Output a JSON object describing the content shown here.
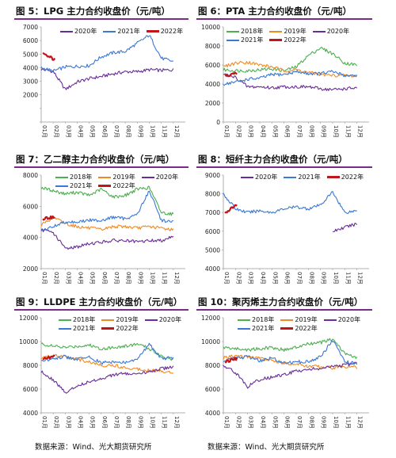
{
  "source_left": "数据来源：Wind、光大期货研究所",
  "source_right": "数据来源：Wind、光大期货研究所",
  "colors": {
    "2018": "#4caf50",
    "2019": "#f08a24",
    "2020": "#6a2c9a",
    "2021": "#3a78d4",
    "2022": "#c0161b",
    "rule": "#7a2b8a"
  },
  "months": [
    "01月",
    "02月",
    "03月",
    "04月",
    "05月",
    "06月",
    "07月",
    "08月",
    "09月",
    "10月",
    "11月",
    "12月"
  ],
  "chart_data": [
    {
      "type": "line",
      "title": "图 5：LPG 主力合约收盘价（元/吨）",
      "ylim": [
        0,
        7000
      ],
      "yticks": [
        0,
        1000,
        2000,
        3000,
        4000,
        5000,
        6000,
        7000
      ],
      "yticklabels": [
        "",
        "",
        "2000",
        "3000",
        "4000",
        "5000",
        "6000",
        "7000"
      ],
      "series": [
        {
          "name": "2020年",
          "values": [
            3880,
            3730,
            2400,
            2950,
            3200,
            3350,
            3550,
            3700,
            3700,
            3850,
            3800,
            3850
          ]
        },
        {
          "name": "2021年",
          "values": [
            4000,
            3750,
            4050,
            4100,
            4150,
            4800,
            5100,
            5200,
            5800,
            6400,
            4700,
            4450
          ]
        },
        {
          "name": "2022年",
          "values": [
            5000,
            4600
          ]
        }
      ]
    },
    {
      "type": "line",
      "title": "图 6：PTA 主力合约收盘价（元/吨）",
      "ylim": [
        0,
        10000
      ],
      "yticks": [
        0,
        2000,
        4000,
        6000,
        8000,
        10000
      ],
      "yticklabels": [
        "0",
        "2000",
        "4000",
        "6000",
        "8000",
        "10000"
      ],
      "series": [
        {
          "name": "2018年",
          "values": [
            5500,
            5400,
            5400,
            5500,
            5600,
            5400,
            5800,
            7000,
            7800,
            7200,
            6200,
            6000
          ]
        },
        {
          "name": "2019年",
          "values": [
            5800,
            6200,
            6300,
            6000,
            5800,
            5400,
            5500,
            5200,
            5000,
            4900,
            4900,
            4800
          ]
        },
        {
          "name": "2020年",
          "values": [
            5000,
            4700,
            3700,
            3700,
            3600,
            3700,
            3700,
            3700,
            3500,
            3400,
            3500,
            3600
          ]
        },
        {
          "name": "2021年",
          "values": [
            4000,
            4200,
            4500,
            4600,
            5000,
            5000,
            5300,
            5100,
            5100,
            5300,
            4900,
            4900
          ]
        },
        {
          "name": "2022年",
          "values": [
            4800,
            5100
          ]
        }
      ]
    },
    {
      "type": "line",
      "title": "图 7：乙二醇主力合约收盘价（元/吨）",
      "ylim": [
        2000,
        8000
      ],
      "yticks": [
        2000,
        4000,
        6000,
        8000
      ],
      "yticklabels": [
        "2000",
        "4000",
        "6000",
        "8000"
      ],
      "series": [
        {
          "name": "2018年",
          "values": [
            7200,
            7000,
            6800,
            6900,
            6700,
            7100,
            6600,
            6700,
            7100,
            7200,
            5600,
            5500
          ]
        },
        {
          "name": "2019年",
          "values": [
            4800,
            5300,
            4900,
            4700,
            4600,
            4500,
            4700,
            4700,
            4600,
            4700,
            4600,
            4500
          ]
        },
        {
          "name": "2020年",
          "values": [
            4500,
            4300,
            3300,
            3400,
            3600,
            3700,
            3800,
            3800,
            3700,
            3800,
            3800,
            4100
          ]
        },
        {
          "name": "2021年",
          "values": [
            4400,
            4700,
            5000,
            5000,
            5100,
            5100,
            5300,
            5200,
            5500,
            7000,
            5100,
            5000
          ]
        },
        {
          "name": "2022年",
          "values": [
            5200,
            5300
          ]
        }
      ]
    },
    {
      "type": "line",
      "title": "图 8：短纤主力合约收盘价（元/吨）",
      "ylim": [
        4000,
        9000
      ],
      "yticks": [
        4000,
        5000,
        6000,
        7000,
        8000,
        9000
      ],
      "yticklabels": [
        "4000",
        "5000",
        "6000",
        "7000",
        "8000",
        "9000"
      ],
      "series": [
        {
          "name": "2020年",
          "values": [
            null,
            null,
            null,
            null,
            null,
            null,
            null,
            null,
            null,
            6000,
            6200,
            6400
          ]
        },
        {
          "name": "2021年",
          "values": [
            8000,
            7200,
            7000,
            7100,
            7000,
            7200,
            7300,
            7200,
            7400,
            8100,
            7000,
            7100
          ]
        },
        {
          "name": "2022年",
          "values": [
            7000,
            7400
          ]
        }
      ]
    },
    {
      "type": "line",
      "title": "图 9：LLDPE 主力合约收盘价（元/吨）",
      "ylim": [
        4000,
        12000
      ],
      "yticks": [
        4000,
        6000,
        8000,
        10000,
        12000
      ],
      "yticklabels": [
        "4000",
        "6000",
        "8000",
        "10000",
        "12000"
      ],
      "series": [
        {
          "name": "2018年",
          "values": [
            9800,
            9600,
            9500,
            9600,
            9700,
            9400,
            9500,
            9600,
            9800,
            9400,
            8800,
            8500
          ]
        },
        {
          "name": "2019年",
          "values": [
            8600,
            8800,
            8800,
            8500,
            8300,
            8000,
            8000,
            7800,
            7700,
            7600,
            7500,
            7400
          ]
        },
        {
          "name": "2020年",
          "values": [
            7500,
            6800,
            5700,
            6300,
            6600,
            6900,
            7200,
            7300,
            7200,
            7500,
            7700,
            7900
          ]
        },
        {
          "name": "2021年",
          "values": [
            8300,
            8600,
            8700,
            8500,
            8700,
            8200,
            8300,
            8200,
            8500,
            9800,
            8600,
            8600
          ]
        },
        {
          "name": "2022年",
          "values": [
            8500,
            8800
          ]
        }
      ]
    },
    {
      "type": "line",
      "title": "图 10：聚丙烯主力合约收盘价（元/吨）",
      "ylim": [
        4000,
        12000
      ],
      "yticks": [
        4000,
        6000,
        8000,
        10000,
        12000
      ],
      "yticklabels": [
        "4000",
        "6000",
        "8000",
        "10000",
        "12000"
      ],
      "series": [
        {
          "name": "2018年",
          "values": [
            9500,
            9400,
            9300,
            9400,
            9500,
            9300,
            9500,
            9800,
            9900,
            10200,
            9000,
            8600
          ]
        },
        {
          "name": "2019年",
          "values": [
            8600,
            8800,
            8700,
            8600,
            8400,
            8200,
            8100,
            7900,
            7900,
            7800,
            7900,
            7800
          ]
        },
        {
          "name": "2020年",
          "values": [
            8000,
            7400,
            6200,
            6800,
            7000,
            7200,
            7500,
            7700,
            7700,
            7900,
            8000,
            8200
          ]
        },
        {
          "name": "2021年",
          "values": [
            8300,
            8600,
            8700,
            8400,
            8600,
            8200,
            8300,
            8300,
            8700,
            10100,
            8300,
            8100
          ]
        },
        {
          "name": "2022年",
          "values": [
            8300,
            8600
          ]
        }
      ]
    }
  ]
}
